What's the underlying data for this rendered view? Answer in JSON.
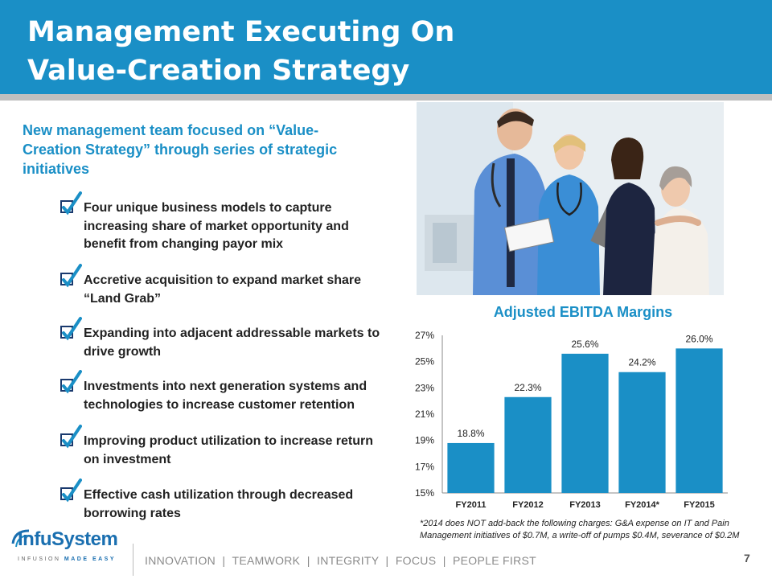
{
  "header": {
    "title_line1": "Management Executing On",
    "title_line2": "Value-Creation Strategy"
  },
  "intro": "New management team focused on “Value-Creation Strategy” through series of strategic initiatives",
  "bullets": [
    "Four unique business models to capture increasing share of market opportunity and benefit from changing payor mix",
    "Accretive acquisition to expand market share “Land Grab”",
    "Expanding into adjacent addressable markets to drive growth",
    "Investments into next generation systems and technologies to increase customer retention",
    "Improving product utilization to increase return on investment",
    "Effective cash utilization through decreased borrowing rates"
  ],
  "chart_data": {
    "type": "bar",
    "title": "Adjusted EBITDA Margins",
    "categories": [
      "FY2011",
      "FY2012",
      "FY2013",
      "FY2014*",
      "FY2015"
    ],
    "values": [
      18.8,
      22.3,
      25.6,
      24.2,
      26.0
    ],
    "data_labels": [
      "18.8%",
      "22.3%",
      "25.6%",
      "24.2%",
      "26.0%"
    ],
    "y_ticks": [
      "15%",
      "17%",
      "19%",
      "21%",
      "23%",
      "25%",
      "27%"
    ],
    "ylim": [
      15,
      27
    ],
    "xlabel": "",
    "ylabel": "",
    "grid": false,
    "bar_color": "#1a8fc6"
  },
  "footnote": "*2014 does NOT add-back the following charges: G&A expense on IT and Pain Management initiatives of $0.7M, a write-off of pumps $0.4M, severance of $0.2M",
  "logo": {
    "name": "InfuSystem",
    "tagline_a": "INFUSION ",
    "tagline_b": "MADE EASY"
  },
  "footer": {
    "values_line": "INNOVATION  |  TEAMWORK  |  INTEGRITY  |  FOCUS  |  PEOPLE FIRST",
    "page_number": "7"
  },
  "colors": {
    "brand_blue": "#1a8fc6",
    "separator_gray": "#bfbfbf"
  },
  "icons": [
    "checkbox-check-icon",
    "photo-doctor-nurse-patients"
  ]
}
